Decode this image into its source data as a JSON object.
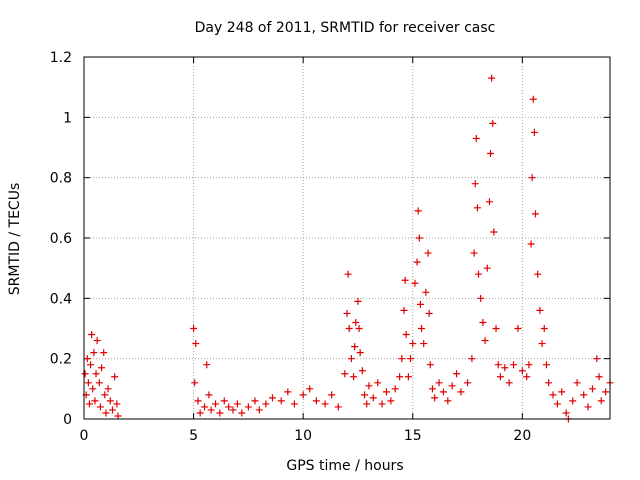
{
  "chart_data": {
    "type": "scatter",
    "title": "Day 248 of 2011, SRMTID for receiver casc",
    "xlabel": "GPS time / hours",
    "ylabel": "SRMTID / TECUs",
    "xlim": [
      0,
      24
    ],
    "ylim": [
      0,
      1.2
    ],
    "x_ticks": [
      "0",
      "5",
      "10",
      "15",
      "20"
    ],
    "x_tick_values": [
      0,
      5,
      10,
      15,
      20
    ],
    "y_ticks": [
      "0",
      "0.2",
      "0.4",
      "0.6",
      "0.8",
      "1",
      "1.2"
    ],
    "y_tick_values": [
      0,
      0.2,
      0.4,
      0.6,
      0.8,
      1.0,
      1.2
    ],
    "grid": true,
    "marker": "+",
    "color": "#e00000",
    "series": [
      {
        "name": "SRMTID",
        "points": [
          [
            0.05,
            0.15
          ],
          [
            0.1,
            0.08
          ],
          [
            0.15,
            0.2
          ],
          [
            0.2,
            0.12
          ],
          [
            0.25,
            0.05
          ],
          [
            0.3,
            0.18
          ],
          [
            0.35,
            0.28
          ],
          [
            0.4,
            0.1
          ],
          [
            0.45,
            0.22
          ],
          [
            0.5,
            0.06
          ],
          [
            0.55,
            0.15
          ],
          [
            0.6,
            0.26
          ],
          [
            0.7,
            0.12
          ],
          [
            0.75,
            0.04
          ],
          [
            0.8,
            0.17
          ],
          [
            0.9,
            0.22
          ],
          [
            0.95,
            0.08
          ],
          [
            1.0,
            0.02
          ],
          [
            1.1,
            0.1
          ],
          [
            1.2,
            0.06
          ],
          [
            1.3,
            0.03
          ],
          [
            1.4,
            0.14
          ],
          [
            1.5,
            0.05
          ],
          [
            1.55,
            0.01
          ],
          [
            5.0,
            0.3
          ],
          [
            5.05,
            0.12
          ],
          [
            5.1,
            0.25
          ],
          [
            5.2,
            0.06
          ],
          [
            5.3,
            0.02
          ],
          [
            5.5,
            0.04
          ],
          [
            5.6,
            0.18
          ],
          [
            5.7,
            0.08
          ],
          [
            5.8,
            0.03
          ],
          [
            6.0,
            0.05
          ],
          [
            6.2,
            0.02
          ],
          [
            6.4,
            0.06
          ],
          [
            6.6,
            0.04
          ],
          [
            6.8,
            0.03
          ],
          [
            7.0,
            0.05
          ],
          [
            7.2,
            0.02
          ],
          [
            7.5,
            0.04
          ],
          [
            7.8,
            0.06
          ],
          [
            8.0,
            0.03
          ],
          [
            8.3,
            0.05
          ],
          [
            8.6,
            0.07
          ],
          [
            9.0,
            0.06
          ],
          [
            9.3,
            0.09
          ],
          [
            9.6,
            0.05
          ],
          [
            10.0,
            0.08
          ],
          [
            10.3,
            0.1
          ],
          [
            10.6,
            0.06
          ],
          [
            11.0,
            0.05
          ],
          [
            11.3,
            0.08
          ],
          [
            11.6,
            0.04
          ],
          [
            11.9,
            0.15
          ],
          [
            12.0,
            0.35
          ],
          [
            12.05,
            0.48
          ],
          [
            12.1,
            0.3
          ],
          [
            12.2,
            0.2
          ],
          [
            12.3,
            0.14
          ],
          [
            12.35,
            0.24
          ],
          [
            12.4,
            0.32
          ],
          [
            12.5,
            0.39
          ],
          [
            12.55,
            0.3
          ],
          [
            12.6,
            0.22
          ],
          [
            12.7,
            0.16
          ],
          [
            12.8,
            0.08
          ],
          [
            12.9,
            0.05
          ],
          [
            13.0,
            0.11
          ],
          [
            13.2,
            0.07
          ],
          [
            13.4,
            0.12
          ],
          [
            13.6,
            0.05
          ],
          [
            13.8,
            0.09
          ],
          [
            14.0,
            0.06
          ],
          [
            14.2,
            0.1
          ],
          [
            14.4,
            0.14
          ],
          [
            14.5,
            0.2
          ],
          [
            14.6,
            0.36
          ],
          [
            14.65,
            0.46
          ],
          [
            14.7,
            0.28
          ],
          [
            14.8,
            0.14
          ],
          [
            14.9,
            0.2
          ],
          [
            15.0,
            0.25
          ],
          [
            15.1,
            0.45
          ],
          [
            15.2,
            0.52
          ],
          [
            15.25,
            0.69
          ],
          [
            15.3,
            0.6
          ],
          [
            15.35,
            0.38
          ],
          [
            15.4,
            0.3
          ],
          [
            15.5,
            0.25
          ],
          [
            15.6,
            0.42
          ],
          [
            15.7,
            0.55
          ],
          [
            15.75,
            0.35
          ],
          [
            15.8,
            0.18
          ],
          [
            15.9,
            0.1
          ],
          [
            16.0,
            0.07
          ],
          [
            16.2,
            0.12
          ],
          [
            16.4,
            0.09
          ],
          [
            16.6,
            0.06
          ],
          [
            16.8,
            0.11
          ],
          [
            17.0,
            0.15
          ],
          [
            17.2,
            0.09
          ],
          [
            17.5,
            0.12
          ],
          [
            17.7,
            0.2
          ],
          [
            17.8,
            0.55
          ],
          [
            17.85,
            0.78
          ],
          [
            17.9,
            0.93
          ],
          [
            17.95,
            0.7
          ],
          [
            18.0,
            0.48
          ],
          [
            18.1,
            0.4
          ],
          [
            18.2,
            0.32
          ],
          [
            18.3,
            0.26
          ],
          [
            18.4,
            0.5
          ],
          [
            18.5,
            0.72
          ],
          [
            18.55,
            0.88
          ],
          [
            18.6,
            1.13
          ],
          [
            18.65,
            0.98
          ],
          [
            18.7,
            0.62
          ],
          [
            18.8,
            0.3
          ],
          [
            18.9,
            0.18
          ],
          [
            19.0,
            0.14
          ],
          [
            19.2,
            0.17
          ],
          [
            19.4,
            0.12
          ],
          [
            19.6,
            0.18
          ],
          [
            19.8,
            0.3
          ],
          [
            20.0,
            0.16
          ],
          [
            20.2,
            0.14
          ],
          [
            20.3,
            0.18
          ],
          [
            20.4,
            0.58
          ],
          [
            20.45,
            0.8
          ],
          [
            20.5,
            1.06
          ],
          [
            20.55,
            0.95
          ],
          [
            20.6,
            0.68
          ],
          [
            20.7,
            0.48
          ],
          [
            20.8,
            0.36
          ],
          [
            20.9,
            0.25
          ],
          [
            21.0,
            0.3
          ],
          [
            21.1,
            0.18
          ],
          [
            21.2,
            0.12
          ],
          [
            21.4,
            0.08
          ],
          [
            21.6,
            0.05
          ],
          [
            21.8,
            0.09
          ],
          [
            22.0,
            0.02
          ],
          [
            22.1,
            0.0
          ],
          [
            22.3,
            0.06
          ],
          [
            22.5,
            0.12
          ],
          [
            22.8,
            0.08
          ],
          [
            23.0,
            0.04
          ],
          [
            23.2,
            0.1
          ],
          [
            23.4,
            0.2
          ],
          [
            23.5,
            0.14
          ],
          [
            23.6,
            0.06
          ],
          [
            23.8,
            0.09
          ],
          [
            24.0,
            0.12
          ]
        ]
      }
    ]
  }
}
